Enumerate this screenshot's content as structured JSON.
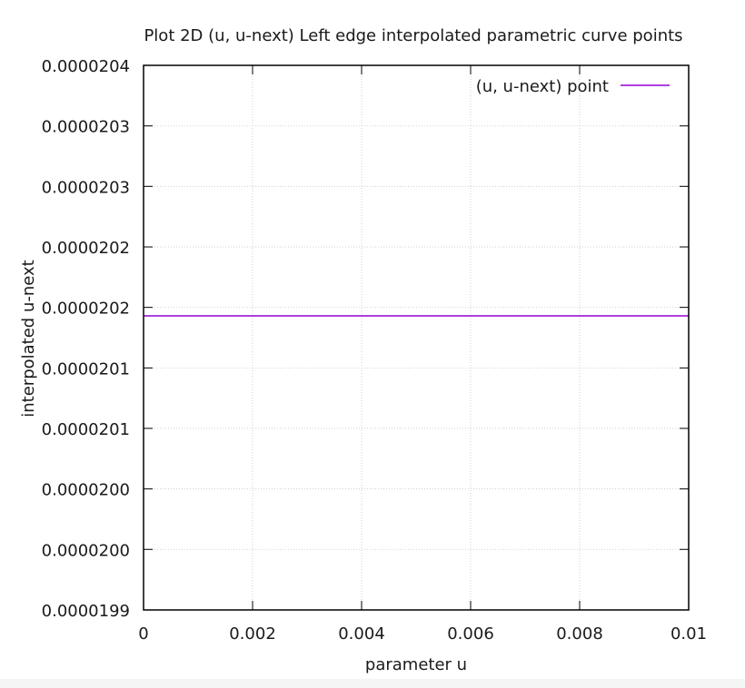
{
  "chart_data": {
    "type": "line",
    "title": "Plot 2D (u, u-next) Left edge interpolated parametric curve points",
    "xlabel": "parameter u",
    "ylabel": "interpolated u-next",
    "xlim": [
      0,
      0.01
    ],
    "ylim": [
      1.99e-05,
      2.04e-05
    ],
    "x_ticks": [
      {
        "value": 0,
        "label": "0"
      },
      {
        "value": 0.002,
        "label": "0.002"
      },
      {
        "value": 0.004,
        "label": "0.004"
      },
      {
        "value": 0.006,
        "label": "0.006"
      },
      {
        "value": 0.008,
        "label": "0.008"
      },
      {
        "value": 0.01,
        "label": "0.01"
      }
    ],
    "y_ticks": [
      {
        "value": 1.99e-05,
        "label": "0.0000199"
      },
      {
        "value": 1.99556e-05,
        "label": "0.0000200"
      },
      {
        "value": 2.00111e-05,
        "label": "0.0000200"
      },
      {
        "value": 2.00667e-05,
        "label": "0.0000201"
      },
      {
        "value": 2.01222e-05,
        "label": "0.0000201"
      },
      {
        "value": 2.01778e-05,
        "label": "0.0000202"
      },
      {
        "value": 2.02333e-05,
        "label": "0.0000202"
      },
      {
        "value": 2.02889e-05,
        "label": "0.0000203"
      },
      {
        "value": 2.03444e-05,
        "label": "0.0000203"
      },
      {
        "value": 2.04e-05,
        "label": "0.0000204"
      }
    ],
    "grid": true,
    "legend_position": "top-right",
    "series": [
      {
        "name": "(u, u-next) point",
        "color": "#9400d3",
        "x": [
          0,
          0.01
        ],
        "y": [
          2.017e-05,
          2.017e-05
        ]
      }
    ]
  }
}
